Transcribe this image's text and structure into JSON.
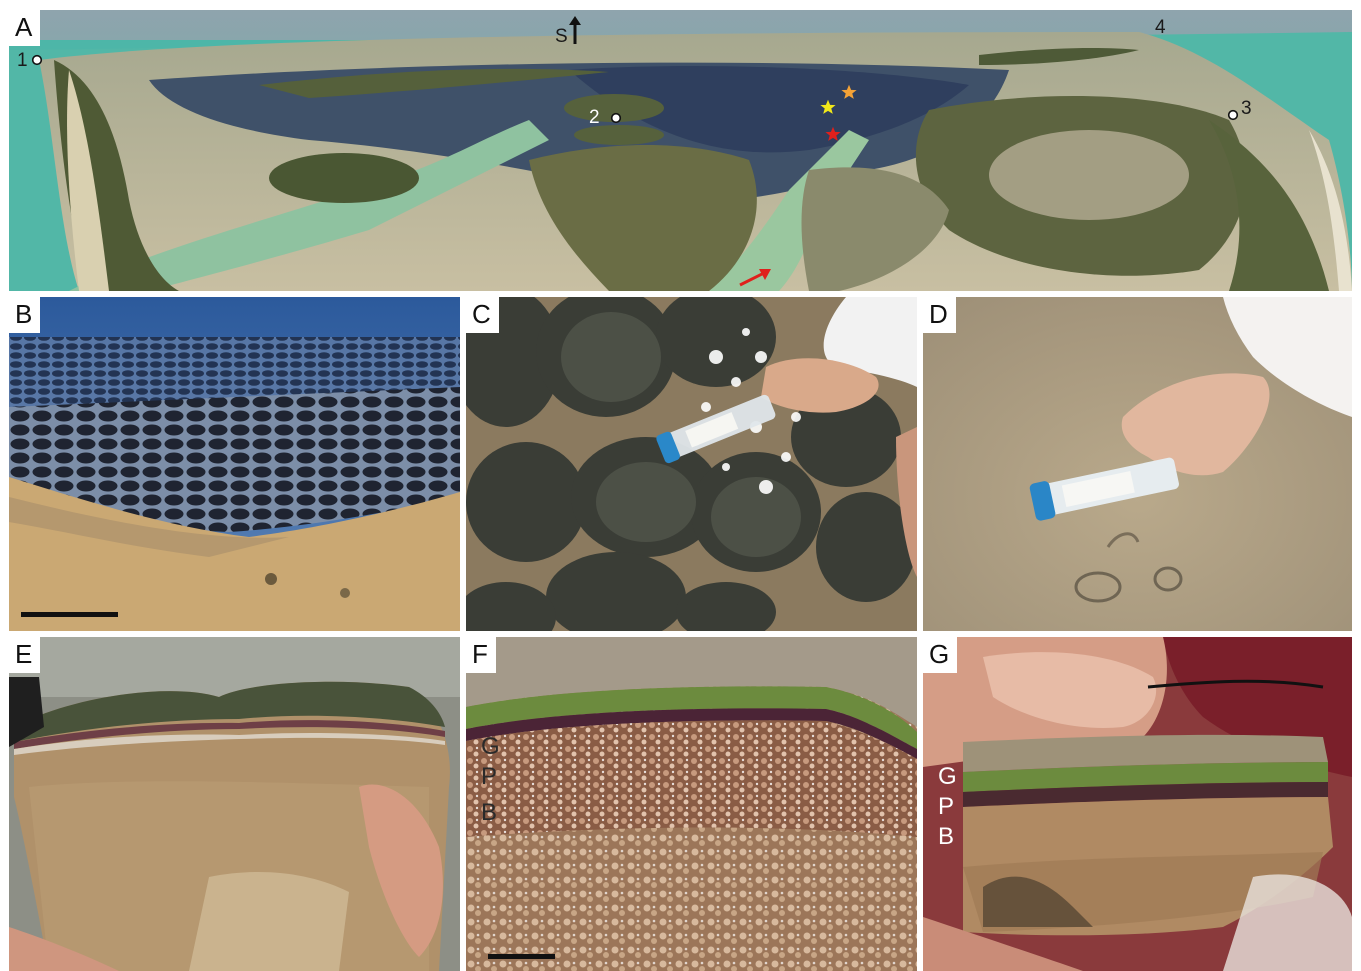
{
  "figure": {
    "panels": [
      {
        "id": "A",
        "label": "A",
        "subject": "aerial-lagoon"
      },
      {
        "id": "B",
        "label": "B",
        "subject": "tidal-flat-with-mats"
      },
      {
        "id": "C",
        "label": "C",
        "subject": "mat-sampling-tube"
      },
      {
        "id": "D",
        "label": "D",
        "subject": "sediment-sampling-tube"
      },
      {
        "id": "E",
        "label": "E",
        "subject": "mat-cross-section"
      },
      {
        "id": "F",
        "label": "F",
        "subject": "layer-closeup"
      },
      {
        "id": "G",
        "label": "G",
        "subject": "layered-slice"
      }
    ],
    "panel_a": {
      "compass": "S",
      "sites": [
        "1",
        "2",
        "3",
        "4"
      ],
      "star_colors": [
        "#f4a236",
        "#f1e81a",
        "#e0201c"
      ],
      "arrow_color": "#e0201c"
    },
    "layers": {
      "green": "G",
      "purple": "P",
      "bottom": "B"
    },
    "colors": {
      "sea": "#4bb7a7",
      "mangrove": "#4f5a35",
      "lagoon": "#3d4e6a",
      "green_layer": "#6c8b3e",
      "purple_layer": "#4b2436",
      "sediment": "#b08a63"
    }
  }
}
